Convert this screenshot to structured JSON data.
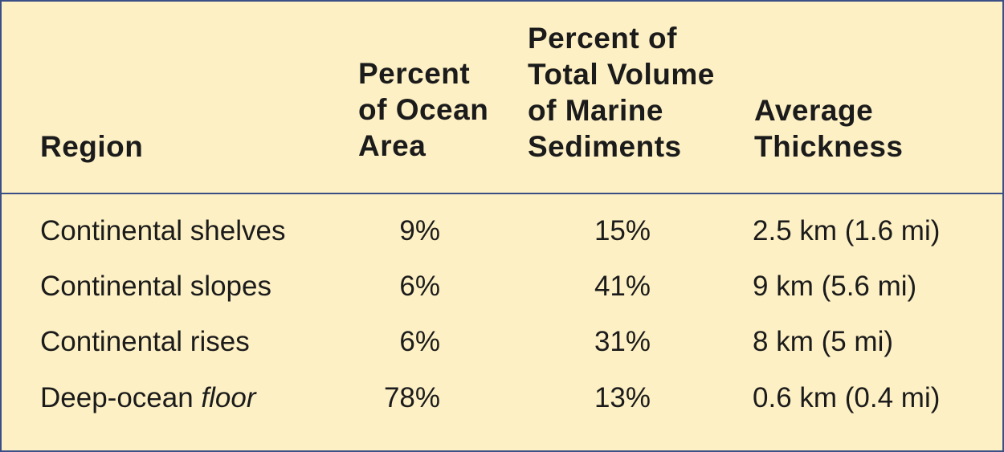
{
  "header": {
    "region": "Region",
    "area": "Percent\nof Ocean\nArea",
    "volume": "Percent of\nTotal Volume\nof Marine\nSediments",
    "thickness": "Average\nThickness"
  },
  "rows": [
    {
      "region": "Continental shelves",
      "area": "9%",
      "volume": "15%",
      "thickness": "2.5 km (1.6 mi)"
    },
    {
      "region": "Continental slopes",
      "area": "6%",
      "volume": "41%",
      "thickness": "9 km (5.6 mi)"
    },
    {
      "region": "Continental rises",
      "area": "6%",
      "volume": "31%",
      "thickness": "8 km (5 mi)"
    },
    {
      "region_prefix": "Deep-ocean ",
      "region_italic": "floor",
      "area": "78%",
      "volume": "13%",
      "thickness": "0.6 km (0.4 mi)"
    }
  ],
  "colors": {
    "background": "#fdf0c4",
    "rule": "#3a4f86"
  }
}
